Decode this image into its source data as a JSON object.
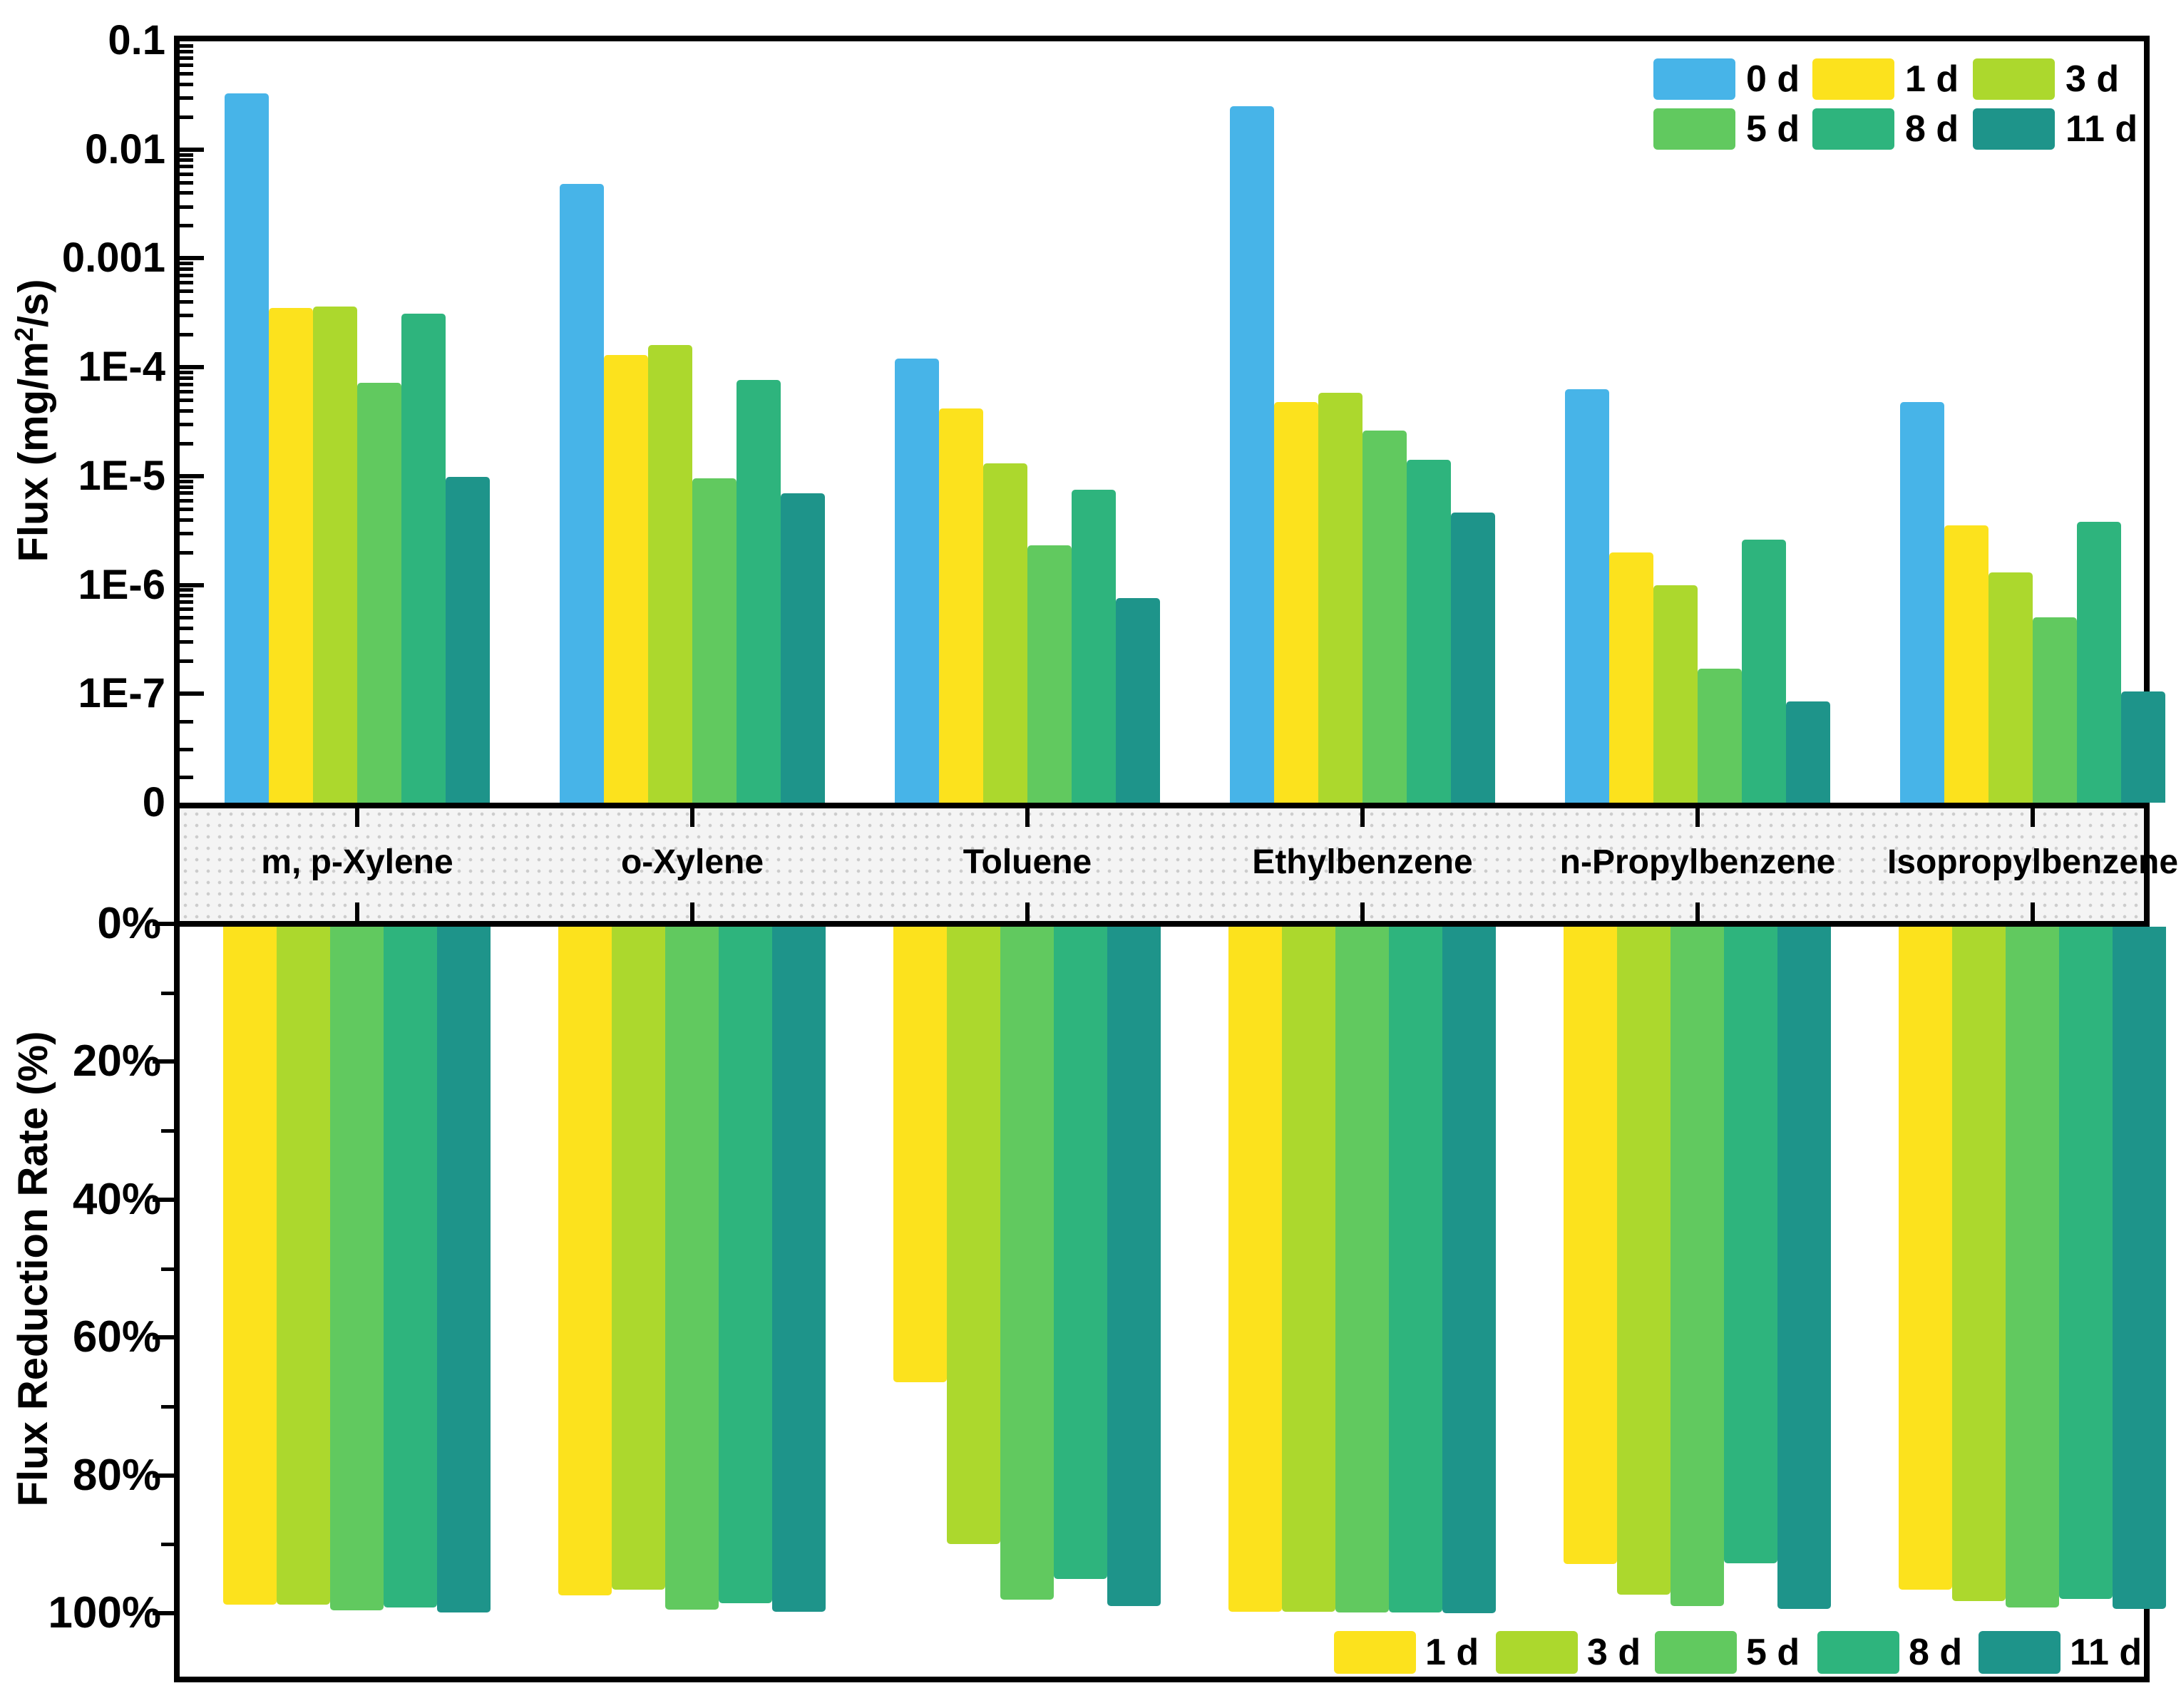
{
  "figure": {
    "top_axis_title": {
      "pre": "Flux (mg/m",
      "sup": "2",
      "post": "/s)"
    },
    "bottom_axis_title": "Flux Reduction Rate (%)",
    "top_y_tick_labels": [
      "0.1",
      "0.01",
      "0.001",
      "1E-4",
      "1E-5",
      "1E-6",
      "1E-7",
      "0"
    ],
    "bottom_y_tick_labels": [
      "0%",
      "20%",
      "40%",
      "60%",
      "80%",
      "100%"
    ],
    "categories": [
      "m, p-Xylene",
      "o-Xylene",
      "Toluene",
      "Ethylbenzene",
      "n-Propylbenzene",
      "Isopropylbenzene"
    ],
    "day_colors": {
      "0 d": "#47B4E8",
      "1 d": "#FCE21D",
      "3 d": "#ACD82D",
      "5 d": "#61C95F",
      "8 d": "#2EB47D",
      "11 d": "#1E948A"
    }
  },
  "chart_data": [
    {
      "type": "bar",
      "panel": "top",
      "title": "",
      "xlabel": "",
      "ylabel": "Flux (mg/m2/s)",
      "yscale": "log",
      "ylim_top": 0.1,
      "ylim_bottom_label": "0",
      "y_tick_labels": [
        "0.1",
        "0.01",
        "0.001",
        "1E-4",
        "1E-5",
        "1E-6",
        "1E-7",
        "0"
      ],
      "legend_position": "top-right",
      "grid": false,
      "categories": [
        "m, p-Xylene",
        "o-Xylene",
        "Toluene",
        "Ethylbenzene",
        "n-Propylbenzene",
        "Isopropylbenzene"
      ],
      "series": [
        {
          "name": "0 d",
          "color": "#47B4E8",
          "values": [
            0.033,
            0.0048,
            0.00012,
            0.025,
            6.3e-05,
            4.8e-05
          ]
        },
        {
          "name": "1 d",
          "color": "#FCE21D",
          "values": [
            0.00035,
            0.00013,
            4.2e-05,
            4.8e-05,
            2e-06,
            3.5e-06
          ]
        },
        {
          "name": "3 d",
          "color": "#ACD82D",
          "values": [
            0.00036,
            0.00016,
            1.3e-05,
            5.8e-05,
            1e-06,
            1.3e-06
          ]
        },
        {
          "name": "5 d",
          "color": "#61C95F",
          "values": [
            7.2e-05,
            9.5e-06,
            2.3e-06,
            2.6e-05,
            1.7e-07,
            5e-07
          ]
        },
        {
          "name": "8 d",
          "color": "#2EB47D",
          "values": [
            0.00031,
            7.6e-05,
            7.5e-06,
            1.4e-05,
            2.6e-06,
            3.8e-06
          ]
        },
        {
          "name": "11 d",
          "color": "#1E948A",
          "values": [
            9.8e-06,
            6.9e-06,
            7.6e-07,
            4.6e-06,
            8.5e-08,
            1.05e-07
          ]
        }
      ]
    },
    {
      "type": "bar",
      "panel": "bottom",
      "title": "",
      "xlabel": "",
      "ylabel": "Flux Reduction Rate (%)",
      "yscale": "linear-inverted",
      "ylim": [
        0,
        100
      ],
      "y_tick_labels": [
        "0%",
        "20%",
        "40%",
        "60%",
        "80%",
        "100%"
      ],
      "legend_position": "bottom-right",
      "grid": false,
      "categories": [
        "m, p-Xylene",
        "o-Xylene",
        "Toluene",
        "Ethylbenzene",
        "n-Propylbenzene",
        "Isopropylbenzene"
      ],
      "series": [
        {
          "name": "1 d",
          "color": "#FCE21D",
          "values": [
            98.8,
            97.4,
            66.5,
            99.8,
            92.9,
            96.6
          ]
        },
        {
          "name": "3 d",
          "color": "#ACD82D",
          "values": [
            98.8,
            96.6,
            90.0,
            99.8,
            97.3,
            98.2
          ]
        },
        {
          "name": "5 d",
          "color": "#61C95F",
          "values": [
            99.6,
            99.5,
            98.0,
            99.9,
            99.0,
            99.2
          ]
        },
        {
          "name": "8 d",
          "color": "#2EB47D",
          "values": [
            99.2,
            98.6,
            95.0,
            99.9,
            92.8,
            97.9
          ]
        },
        {
          "name": "11 d",
          "color": "#1E948A",
          "values": [
            99.9,
            99.8,
            99.0,
            100.0,
            99.4,
            99.4
          ]
        }
      ]
    }
  ],
  "legend_top": {
    "labels": [
      "0 d",
      "1 d",
      "3 d",
      "5 d",
      "8 d",
      "11 d"
    ]
  },
  "legend_bottom": {
    "labels": [
      "1 d",
      "3 d",
      "5 d",
      "8 d",
      "11 d"
    ]
  }
}
